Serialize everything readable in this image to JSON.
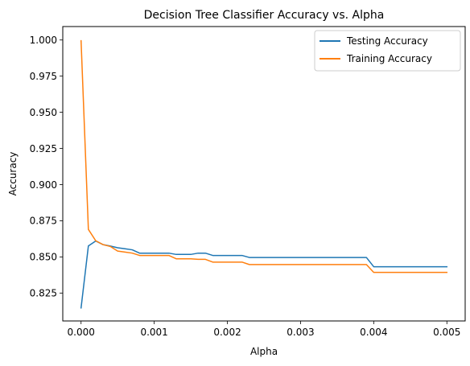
{
  "chart_data": {
    "type": "line",
    "title": "Decision Tree Classifier Accuracy vs. Alpha",
    "xlabel": "Alpha",
    "ylabel": "Accuracy",
    "xlim": [
      -0.00025,
      0.00525
    ],
    "ylim": [
      0.8057,
      1.0093
    ],
    "xticks": [
      0.0,
      0.001,
      0.002,
      0.003,
      0.004,
      0.005
    ],
    "xtick_labels": [
      "0.000",
      "0.001",
      "0.002",
      "0.003",
      "0.004",
      "0.005"
    ],
    "yticks": [
      0.825,
      0.85,
      0.875,
      0.9,
      0.925,
      0.95,
      0.975,
      1.0
    ],
    "ytick_labels": [
      "0.825",
      "0.850",
      "0.875",
      "0.900",
      "0.925",
      "0.950",
      "0.975",
      "1.000"
    ],
    "grid": false,
    "legend_position": "top-right",
    "series": [
      {
        "name": "Testing Accuracy",
        "color": "#1f77b4",
        "x": [
          0.0,
          0.0001,
          0.0002,
          0.0003,
          0.0004,
          0.0005,
          0.0006,
          0.0007,
          0.0008,
          0.0009,
          0.001,
          0.0011,
          0.0012,
          0.0013,
          0.0014,
          0.0015,
          0.0016,
          0.0017,
          0.0018,
          0.0019,
          0.002,
          0.0021,
          0.0022,
          0.0023,
          0.0024,
          0.0025,
          0.0026,
          0.0027,
          0.0028,
          0.0029,
          0.003,
          0.0031,
          0.0032,
          0.0033,
          0.0034,
          0.0035,
          0.0036,
          0.0037,
          0.0038,
          0.0039,
          0.004,
          0.0041,
          0.0042,
          0.0043,
          0.0044,
          0.0045,
          0.0046,
          0.0047,
          0.0048,
          0.0049,
          0.005
        ],
        "y": [
          0.8147,
          0.8576,
          0.861,
          0.8585,
          0.8575,
          0.8563,
          0.8556,
          0.8549,
          0.8526,
          0.8526,
          0.8526,
          0.8526,
          0.8526,
          0.8517,
          0.8517,
          0.8517,
          0.8526,
          0.8526,
          0.851,
          0.851,
          0.851,
          0.851,
          0.851,
          0.8496,
          0.8496,
          0.8496,
          0.8496,
          0.8496,
          0.8496,
          0.8496,
          0.8496,
          0.8496,
          0.8496,
          0.8496,
          0.8496,
          0.8496,
          0.8496,
          0.8496,
          0.8496,
          0.8496,
          0.8432,
          0.8432,
          0.8432,
          0.8432,
          0.8432,
          0.8432,
          0.8432,
          0.8432,
          0.8432,
          0.8432,
          0.8432
        ]
      },
      {
        "name": "Training Accuracy",
        "color": "#ff7f0e",
        "x": [
          0.0,
          0.0001,
          0.0002,
          0.0003,
          0.0004,
          0.0005,
          0.0006,
          0.0007,
          0.0008,
          0.0009,
          0.001,
          0.0011,
          0.0012,
          0.0013,
          0.0014,
          0.0015,
          0.0016,
          0.0017,
          0.0018,
          0.0019,
          0.002,
          0.0021,
          0.0022,
          0.0023,
          0.0024,
          0.0025,
          0.0026,
          0.0027,
          0.0028,
          0.0029,
          0.003,
          0.0031,
          0.0032,
          0.0033,
          0.0034,
          0.0035,
          0.0036,
          0.0037,
          0.0038,
          0.0039,
          0.004,
          0.0041,
          0.0042,
          0.0043,
          0.0044,
          0.0045,
          0.0046,
          0.0047,
          0.0048,
          0.0049,
          0.005
        ],
        "y": [
          0.9995,
          0.869,
          0.8612,
          0.8585,
          0.8572,
          0.854,
          0.8533,
          0.8526,
          0.851,
          0.851,
          0.851,
          0.851,
          0.851,
          0.8487,
          0.8487,
          0.8487,
          0.8483,
          0.8483,
          0.8464,
          0.8464,
          0.8464,
          0.8464,
          0.8464,
          0.8447,
          0.8447,
          0.8447,
          0.8447,
          0.8447,
          0.8447,
          0.8447,
          0.8447,
          0.8447,
          0.8447,
          0.8447,
          0.8447,
          0.8447,
          0.8447,
          0.8447,
          0.8447,
          0.8447,
          0.8393,
          0.8393,
          0.8393,
          0.8393,
          0.8393,
          0.8393,
          0.8393,
          0.8393,
          0.8393,
          0.8393,
          0.8393
        ]
      }
    ]
  }
}
